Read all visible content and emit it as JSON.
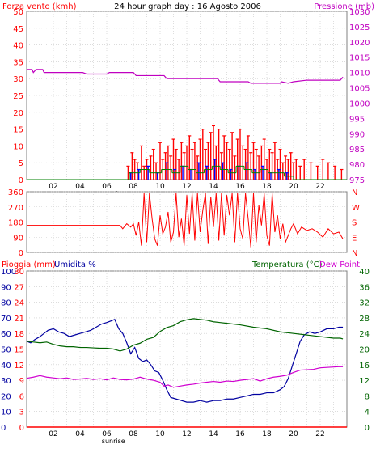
{
  "header": {
    "left_label": "Forza vento (kmh)",
    "title": "24 hour graph day : 16 Agosto 2006",
    "right_label": "Pressione (mb)"
  },
  "colors": {
    "wind_speed": "#ff0000",
    "wind_gust_blue": "#0000ff",
    "wind_gust_green": "#008000",
    "pressure": "#c000c0",
    "wind_dir": "#ff0000",
    "rain": "#ff0000",
    "humidity": "#0000a0",
    "temperature": "#006400",
    "dew_point": "#d000d0",
    "frame": "#808080",
    "grid": "#c8c8c8"
  },
  "bottom_panel_labels": {
    "rain": "Pioggia (mm)",
    "humidity": "Umidita %",
    "temperature": "Temperatura (°C)",
    "dew_point": "Dew Point"
  },
  "sunrise_label": "sunrise",
  "x_ticks": [
    "02",
    "04",
    "06",
    "08",
    "10",
    "12",
    "14",
    "16",
    "18",
    "20",
    "22"
  ],
  "wind_dir_labels": [
    "N",
    "W",
    "S",
    "E",
    "N"
  ],
  "chart_data": [
    {
      "type": "line",
      "name": "wind and pressure",
      "xlim": [
        0,
        24
      ],
      "y_left": {
        "label": "Forza vento (kmh)",
        "ylim": [
          0,
          50
        ],
        "ticks": [
          0,
          5,
          10,
          15,
          20,
          25,
          30,
          35,
          40,
          45,
          50
        ]
      },
      "y_right": {
        "label": "Pressione (mb)",
        "ylim": [
          975,
          1030
        ],
        "ticks": [
          975,
          980,
          985,
          990,
          995,
          1000,
          1005,
          1010,
          1015,
          1020,
          1025,
          1030
        ]
      },
      "series": [
        {
          "name": "Pressione (mb)",
          "axis": "right",
          "x": [
            0,
            0.4,
            0.5,
            0.7,
            1.2,
            1.3,
            4.2,
            4.5,
            6.0,
            6.2,
            8.0,
            8.2,
            10.3,
            10.5,
            12.5,
            14.3,
            14.5,
            16.6,
            16.8,
            17.5,
            19.0,
            19.1,
            19.6,
            20.0,
            21.0,
            22.0,
            23.0,
            23.5,
            23.7
          ],
          "y": [
            1011,
            1011,
            1010,
            1011,
            1011,
            1010,
            1010,
            1009.5,
            1009.5,
            1010,
            1010,
            1009,
            1009,
            1008,
            1008,
            1008,
            1007,
            1007,
            1006.5,
            1006.5,
            1006.5,
            1007,
            1006.5,
            1007,
            1007.5,
            1007.5,
            1007.5,
            1007.5,
            1008.5
          ]
        },
        {
          "name": "Forza vento (kmh)",
          "axis": "left",
          "bar_style": true,
          "x": [
            7.6,
            7.9,
            8.1,
            8.3,
            8.6,
            8.8,
            9.0,
            9.3,
            9.5,
            9.7,
            10.0,
            10.2,
            10.4,
            10.6,
            10.8,
            11.0,
            11.2,
            11.4,
            11.6,
            11.8,
            12.0,
            12.2,
            12.4,
            12.6,
            12.8,
            13.0,
            13.2,
            13.4,
            13.6,
            13.8,
            14.0,
            14.2,
            14.4,
            14.6,
            14.8,
            15.0,
            15.2,
            15.4,
            15.6,
            15.8,
            16.0,
            16.2,
            16.4,
            16.6,
            16.8,
            17.0,
            17.2,
            17.4,
            17.6,
            17.8,
            18.0,
            18.2,
            18.4,
            18.6,
            18.8,
            19.0,
            19.2,
            19.4,
            19.6,
            19.8,
            20.0,
            20.2,
            20.5,
            20.8,
            21.3,
            21.8,
            22.2,
            22.6,
            23.1,
            23.6
          ],
          "y": [
            4,
            8,
            6,
            5,
            10,
            4,
            6,
            7,
            9,
            5,
            11,
            6,
            8,
            10,
            7,
            12,
            9,
            6,
            11,
            8,
            10,
            13,
            9,
            11,
            7,
            12,
            15,
            9,
            11,
            14,
            16,
            10,
            15,
            8,
            13,
            11,
            9,
            14,
            7,
            12,
            15,
            10,
            9,
            13,
            8,
            11,
            9,
            7,
            10,
            12,
            6,
            9,
            8,
            11,
            6,
            9,
            5,
            7,
            6,
            8,
            5,
            6,
            4,
            6,
            5,
            4,
            6,
            5,
            4,
            3
          ]
        },
        {
          "name": "blue",
          "axis": "left",
          "bar_style": true,
          "x": [
            7.8,
            8.4,
            9.1,
            9.8,
            10.5,
            11.1,
            11.7,
            12.3,
            12.9,
            13.5,
            14.1,
            14.7,
            15.3,
            15.9,
            16.5,
            17.1,
            17.7,
            18.3,
            18.9,
            19.5
          ],
          "y": [
            2,
            3,
            4,
            2,
            5,
            3,
            4,
            3,
            5,
            4,
            6,
            5,
            3,
            4,
            5,
            3,
            4,
            2,
            3,
            2
          ]
        },
        {
          "name": "green",
          "axis": "left",
          "bar_style": true,
          "x": [
            0,
            7.5,
            7.7,
            8.5,
            9.2,
            10.1,
            10.9,
            11.5,
            12.1,
            12.7,
            13.3,
            13.9,
            14.5,
            15.1,
            15.7,
            16.3,
            16.9,
            17.5,
            18.1,
            18.7,
            19.3,
            20.0,
            24.0
          ],
          "y": [
            0,
            0,
            2,
            3,
            2,
            3,
            2,
            4,
            3,
            2,
            3,
            4,
            3,
            2,
            4,
            3,
            2,
            3,
            2,
            2,
            1,
            0,
            0
          ]
        }
      ]
    },
    {
      "type": "line",
      "name": "wind direction",
      "xlim": [
        0,
        24
      ],
      "y_left": {
        "ylim": [
          0,
          360
        ],
        "ticks": [
          0,
          90,
          180,
          270,
          360
        ]
      },
      "y_right": {
        "labels": [
          "N",
          "W",
          "S",
          "E",
          "N"
        ]
      },
      "series": [
        {
          "name": "wind direction",
          "x": [
            0,
            7.0,
            7.2,
            7.5,
            7.8,
            8.0,
            8.2,
            8.4,
            8.6,
            8.8,
            9.0,
            9.2,
            9.4,
            9.6,
            9.8,
            10.0,
            10.2,
            10.4,
            10.6,
            10.8,
            11.0,
            11.2,
            11.4,
            11.6,
            11.8,
            12.0,
            12.2,
            12.4,
            12.6,
            12.8,
            13.0,
            13.2,
            13.4,
            13.6,
            13.8,
            14.0,
            14.2,
            14.4,
            14.6,
            14.8,
            15.0,
            15.2,
            15.4,
            15.6,
            15.8,
            16.0,
            16.2,
            16.4,
            16.6,
            16.8,
            17.0,
            17.2,
            17.4,
            17.6,
            17.8,
            18.0,
            18.2,
            18.4,
            18.6,
            18.8,
            19.0,
            19.2,
            19.4,
            19.6,
            19.8,
            20.0,
            20.3,
            20.6,
            21.0,
            21.4,
            21.8,
            22.2,
            22.6,
            23.0,
            23.4,
            23.7
          ],
          "y": [
            160,
            160,
            140,
            170,
            150,
            170,
            100,
            180,
            40,
            350,
            60,
            350,
            200,
            80,
            40,
            220,
            110,
            150,
            240,
            60,
            120,
            350,
            90,
            200,
            40,
            340,
            110,
            350,
            70,
            350,
            120,
            250,
            350,
            50,
            330,
            150,
            350,
            70,
            350,
            100,
            340,
            220,
            350,
            60,
            350,
            140,
            80,
            350,
            200,
            30,
            350,
            60,
            280,
            160,
            350,
            100,
            40,
            350,
            120,
            220,
            80,
            170,
            60,
            100,
            140,
            170,
            110,
            150,
            130,
            140,
            120,
            90,
            140,
            110,
            120,
            80
          ]
        }
      ]
    },
    {
      "type": "line",
      "name": "rain humidity temperature dew point",
      "xlim": [
        0,
        24
      ],
      "y_rain": {
        "label": "Pioggia (mm)",
        "ylim": [
          0,
          30
        ],
        "ticks": [
          0,
          3,
          6,
          9,
          12,
          15,
          18,
          21,
          24,
          27,
          30
        ]
      },
      "y_humidity": {
        "label": "Umidita %",
        "ylim": [
          0,
          100
        ],
        "ticks": [
          0,
          10,
          20,
          30,
          40,
          50,
          60,
          70,
          80,
          90,
          100
        ]
      },
      "y_temperature": {
        "label": "Temperatura (°C)",
        "ylim": [
          0,
          40
        ],
        "ticks": [
          0,
          4,
          8,
          12,
          16,
          20,
          24,
          28,
          32,
          36,
          40
        ]
      },
      "series": [
        {
          "name": "Umidita %",
          "axis": "humidity",
          "x": [
            0,
            0.3,
            0.6,
            1.0,
            1.3,
            1.6,
            2.0,
            2.4,
            2.8,
            3.2,
            3.6,
            4.0,
            4.4,
            4.8,
            5.2,
            5.6,
            6.0,
            6.3,
            6.6,
            6.9,
            7.2,
            7.5,
            7.8,
            8.1,
            8.4,
            8.7,
            9.0,
            9.3,
            9.6,
            9.9,
            10.2,
            10.5,
            10.8,
            11.2,
            11.6,
            12.0,
            12.5,
            13.0,
            13.5,
            14.0,
            14.5,
            15.0,
            15.5,
            16.0,
            16.5,
            17.0,
            17.5,
            18.0,
            18.5,
            19.0,
            19.3,
            19.6,
            19.9,
            20.2,
            20.5,
            20.8,
            21.2,
            21.6,
            22.0,
            22.5,
            23.0,
            23.4,
            23.7
          ],
          "y": [
            55,
            54,
            56,
            58,
            60,
            62,
            63,
            61,
            60,
            58,
            59,
            60,
            61,
            62,
            64,
            66,
            67,
            68,
            69,
            63,
            60,
            54,
            47,
            51,
            44,
            42,
            43,
            40,
            36,
            35,
            30,
            24,
            19,
            18,
            17,
            16,
            16,
            17,
            16,
            17,
            17,
            18,
            18,
            19,
            20,
            21,
            21,
            22,
            22,
            24,
            26,
            31,
            39,
            47,
            55,
            59,
            61,
            60,
            61,
            63,
            63,
            64,
            64
          ]
        },
        {
          "name": "Temperatura (°C)",
          "axis": "temperature",
          "x": [
            0,
            0.5,
            1.0,
            1.5,
            2.0,
            2.5,
            3.0,
            3.5,
            4.0,
            4.5,
            5.0,
            5.5,
            6.0,
            6.5,
            7.0,
            7.5,
            8.0,
            8.5,
            9.0,
            9.5,
            10.0,
            10.5,
            11.0,
            11.5,
            12.0,
            12.5,
            13.0,
            13.5,
            14.0,
            14.5,
            15.0,
            16.0,
            17.0,
            18.0,
            19.0,
            20.0,
            21.0,
            22.0,
            22.5,
            23.0,
            23.5,
            23.7
          ],
          "y": [
            22,
            21.8,
            21.6,
            21.8,
            21.2,
            20.8,
            20.6,
            20.6,
            20.4,
            20.4,
            20.3,
            20.2,
            20.2,
            20.0,
            19.5,
            20.0,
            21.0,
            21.5,
            22.5,
            23.0,
            24.5,
            25.5,
            26.0,
            27.0,
            27.5,
            27.8,
            27.6,
            27.4,
            27.0,
            26.8,
            26.6,
            26.2,
            25.6,
            25.2,
            24.4,
            24.0,
            23.6,
            23.2,
            23.0,
            22.8,
            22.8,
            22.6
          ]
        },
        {
          "name": "Dew Point",
          "axis": "temperature",
          "x": [
            0,
            0.5,
            1.0,
            1.5,
            2.0,
            2.5,
            3.0,
            3.5,
            4.0,
            4.5,
            5.0,
            5.5,
            6.0,
            6.5,
            7.0,
            7.5,
            8.0,
            8.5,
            9.0,
            9.5,
            10.0,
            10.3,
            10.6,
            11.0,
            11.5,
            12.0,
            12.5,
            13.0,
            13.5,
            14.0,
            14.5,
            15.0,
            15.5,
            16.0,
            16.5,
            17.0,
            17.5,
            18.0,
            18.5,
            19.0,
            19.5,
            20.0,
            20.5,
            21.0,
            21.5,
            22.0,
            22.5,
            23.0,
            23.5,
            23.7
          ],
          "y": [
            12.5,
            12.8,
            13.2,
            12.8,
            12.6,
            12.4,
            12.6,
            12.2,
            12.3,
            12.5,
            12.2,
            12.4,
            12.1,
            12.6,
            12.2,
            12.1,
            12.3,
            12.8,
            12.3,
            12.0,
            11.5,
            10.5,
            10.8,
            10.2,
            10.5,
            10.8,
            11.0,
            11.3,
            11.5,
            11.7,
            11.5,
            11.8,
            11.7,
            12.0,
            12.2,
            12.4,
            11.8,
            12.4,
            12.8,
            13.0,
            13.3,
            14.0,
            14.6,
            14.7,
            14.8,
            15.2,
            15.3,
            15.4,
            15.5,
            15.5
          ]
        },
        {
          "name": "Pioggia (mm)",
          "axis": "rain",
          "x": [
            0,
            24
          ],
          "y": [
            0,
            0
          ]
        }
      ]
    }
  ]
}
